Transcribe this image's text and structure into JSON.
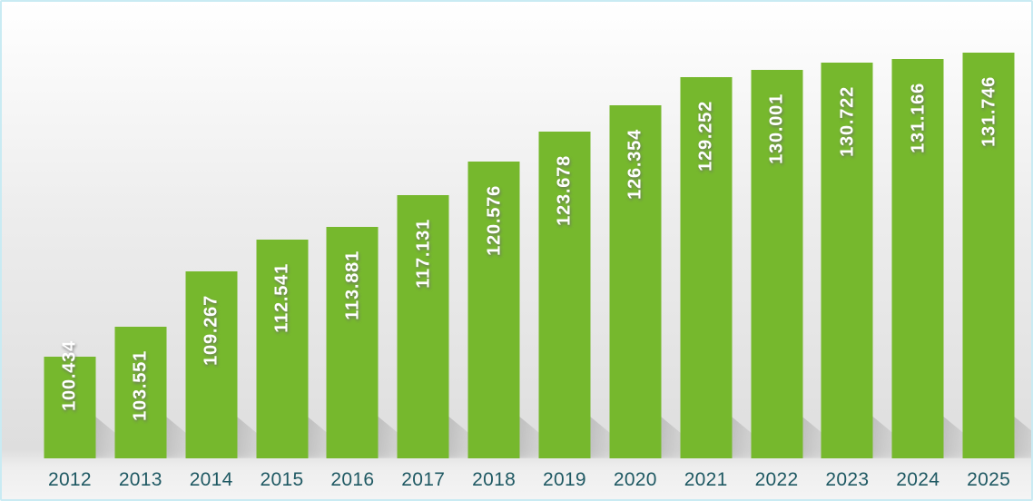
{
  "chart_data": {
    "type": "bar",
    "title": "",
    "xlabel": "",
    "ylabel": "",
    "categories": [
      "2012",
      "2013",
      "2014",
      "2015",
      "2016",
      "2017",
      "2018",
      "2019",
      "2020",
      "2021",
      "2022",
      "2023",
      "2024",
      "2025"
    ],
    "values": [
      100.434,
      103.551,
      109.267,
      112.541,
      113.881,
      117.131,
      120.576,
      123.678,
      126.354,
      129.252,
      130.001,
      130.722,
      131.166,
      131.746
    ],
    "value_labels": [
      "100.434",
      "103.551",
      "109.267",
      "112.541",
      "113.881",
      "117.131",
      "120.576",
      "123.678",
      "126.354",
      "129.252",
      "130.001",
      "130.722",
      "131.166",
      "131.746"
    ],
    "ylim": [
      90,
      135
    ],
    "grid": false,
    "legend": false,
    "value_label_position": "inside-end-vertical",
    "colors": {
      "bar": "#76b82d",
      "value_label": "#ffffff",
      "category_label": "#1f5963",
      "frame_border": "#c9ebf3"
    }
  }
}
